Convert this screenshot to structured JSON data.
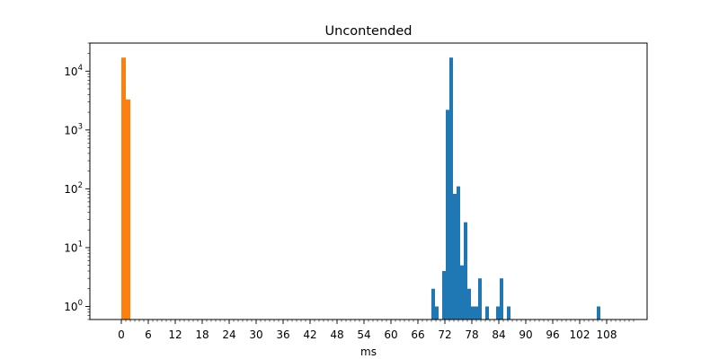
{
  "chart_data": {
    "type": "bar",
    "title": "Uncontended",
    "xlabel": "ms",
    "ylabel": "",
    "yscale": "log",
    "xlim": [
      -7,
      117
    ],
    "ylim": [
      0.6,
      30000
    ],
    "grid": false,
    "x_ticks": [
      0,
      6,
      12,
      18,
      24,
      30,
      36,
      42,
      48,
      54,
      60,
      66,
      72,
      78,
      84,
      90,
      96,
      102,
      108
    ],
    "x_minor_tick_step": 1,
    "y_ticks": [
      {
        "value": 1,
        "label_base": "10",
        "label_exp": "0"
      },
      {
        "value": 10,
        "label_base": "10",
        "label_exp": "1"
      },
      {
        "value": 100,
        "label_base": "10",
        "label_exp": "2"
      },
      {
        "value": 1000,
        "label_base": "10",
        "label_exp": "3"
      },
      {
        "value": 10000,
        "label_base": "10",
        "label_exp": "4"
      }
    ],
    "series": [
      {
        "color": "#ff7f0e",
        "bins": [
          {
            "x0": 0.0,
            "x1": 1.0,
            "value": 17000
          },
          {
            "x0": 1.0,
            "x1": 2.0,
            "value": 3300
          }
        ]
      },
      {
        "color": "#1f77b4",
        "bins": [
          {
            "x0": 69.0,
            "x1": 69.8,
            "value": 2
          },
          {
            "x0": 69.8,
            "x1": 70.6,
            "value": 1
          },
          {
            "x0": 71.4,
            "x1": 72.2,
            "value": 4
          },
          {
            "x0": 72.2,
            "x1": 73.0,
            "value": 2200
          },
          {
            "x0": 73.0,
            "x1": 73.8,
            "value": 17000
          },
          {
            "x0": 73.8,
            "x1": 74.6,
            "value": 82
          },
          {
            "x0": 74.6,
            "x1": 75.4,
            "value": 110
          },
          {
            "x0": 75.4,
            "x1": 76.2,
            "value": 5
          },
          {
            "x0": 76.2,
            "x1": 77.0,
            "value": 27
          },
          {
            "x0": 77.0,
            "x1": 77.8,
            "value": 2
          },
          {
            "x0": 77.8,
            "x1": 78.6,
            "value": 1
          },
          {
            "x0": 78.6,
            "x1": 79.4,
            "value": 1
          },
          {
            "x0": 79.4,
            "x1": 80.2,
            "value": 3
          },
          {
            "x0": 81.0,
            "x1": 81.8,
            "value": 1
          },
          {
            "x0": 83.4,
            "x1": 84.2,
            "value": 1
          },
          {
            "x0": 84.2,
            "x1": 85.0,
            "value": 3
          },
          {
            "x0": 85.8,
            "x1": 86.6,
            "value": 1
          },
          {
            "x0": 105.8,
            "x1": 106.6,
            "value": 1
          }
        ]
      }
    ]
  }
}
